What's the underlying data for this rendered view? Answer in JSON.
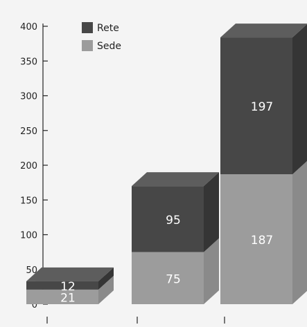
{
  "chart_data": {
    "type": "bar",
    "stacked": true,
    "three_d": true,
    "categories": [
      "",
      "",
      ""
    ],
    "series": [
      {
        "name": "Sede",
        "values": [
          21,
          75,
          187
        ],
        "color": "#9c9c9c"
      },
      {
        "name": "Rete",
        "values": [
          12,
          95,
          197
        ],
        "color": "#474747"
      }
    ],
    "ylim": [
      0,
      400
    ],
    "yticks": [
      0,
      50,
      100,
      150,
      200,
      250,
      300,
      350,
      400
    ],
    "legend_position": "top-left",
    "grid": false
  }
}
